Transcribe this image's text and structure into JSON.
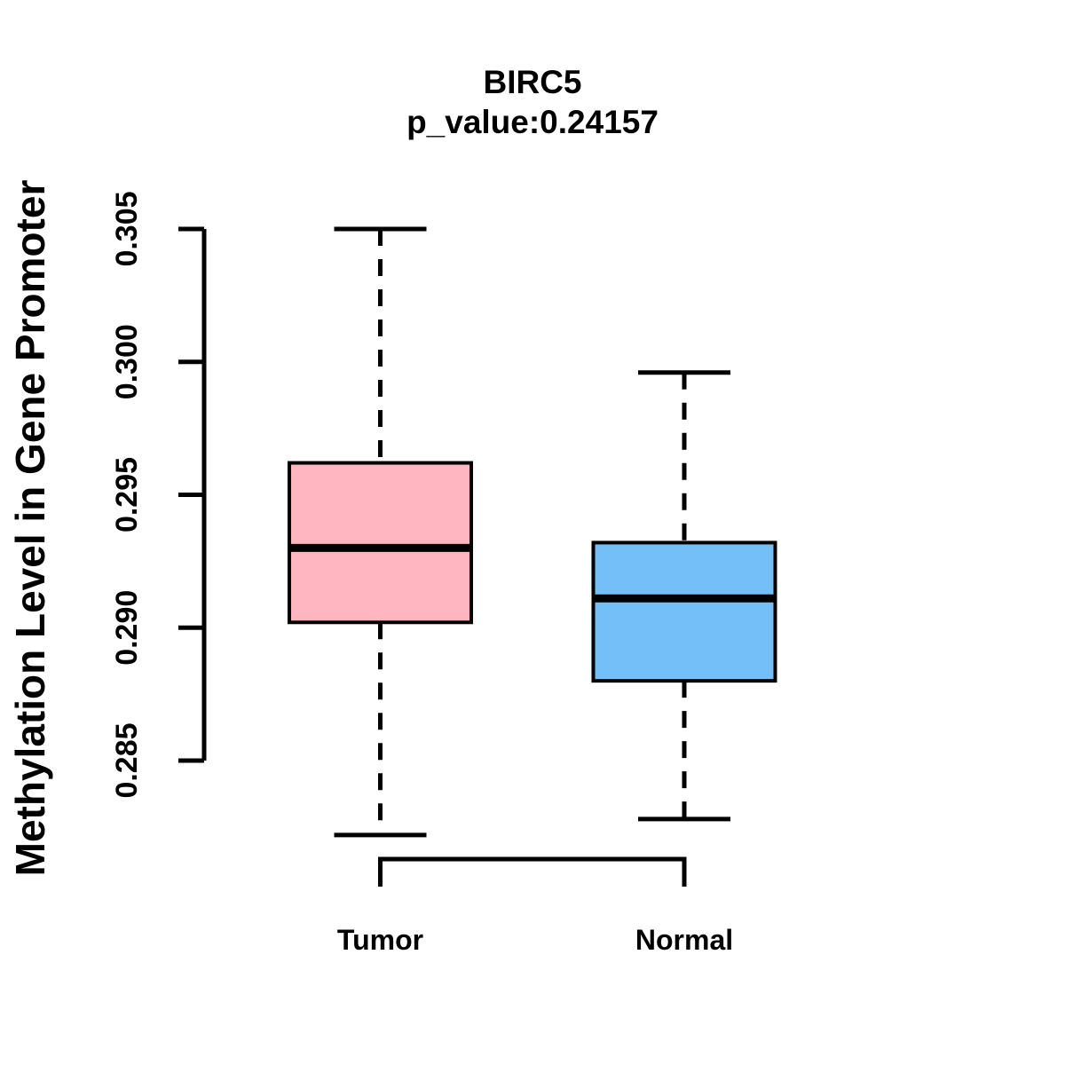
{
  "chart": {
    "title": "BIRC5",
    "subtitle": "p_value:0.24157",
    "ylabel": "Methylation Level in Gene Promoter"
  },
  "chart_data": {
    "type": "boxplot",
    "title": "BIRC5",
    "subtitle": "p_value:0.24157",
    "p_value": "0.24157",
    "xlabel": "",
    "ylabel": "Methylation Level in Gene Promoter",
    "ylim": [
      0.285,
      0.305
    ],
    "yticks": [
      "0.285",
      "0.290",
      "0.295",
      "0.300",
      "0.305"
    ],
    "ytick_values": [
      0.285,
      0.29,
      0.295,
      0.3,
      0.305
    ],
    "grid": false,
    "legend": "none",
    "categories": [
      "Tumor",
      "Normal"
    ],
    "groups": [
      {
        "label": "Tumor",
        "fill_color": "#FFB6C1",
        "stats": {
          "lower_whisker": 0.2822,
          "q1": 0.2902,
          "median": 0.293,
          "q3": 0.2962,
          "upper_whisker": 0.305
        }
      },
      {
        "label": "Normal",
        "fill_color": "#74BFF7",
        "stats": {
          "lower_whisker": 0.2828,
          "q1": 0.288,
          "median": 0.2911,
          "q3": 0.2932,
          "upper_whisker": 0.2996
        }
      }
    ],
    "colors": {
      "box_border": "#000000",
      "median_line": "#000000",
      "whisker": "#000000",
      "axis": "#000000",
      "background": "#FFFFFF"
    }
  }
}
